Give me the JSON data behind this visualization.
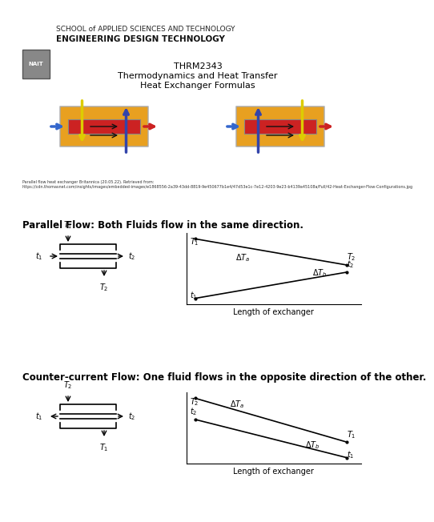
{
  "title_line1": "THRM2343",
  "title_line2": "Thermodynamics and Heat Transfer",
  "title_line3": "Heat Exchanger Formulas",
  "header_line1": "SCHOOL of APPLIED SCIENCES AND TECHNOLOGY",
  "header_line2": "ENGINEERING DESIGN TECHNOLOGY",
  "parallel_label": "Parallel Flow: Both Fluids flow in the same direction.",
  "counter_label": "Counter-current Flow: One fluid flows in the opposite direction of the other.",
  "xlabel": "Length of exchanger",
  "bg_color": "#ffffff",
  "text_color": "#000000",
  "citation_text": "Parallel flow heat exchanger Britannica (20.05.22). Retrieved from: https://cdn.thomasnet.com/insights/images/embedded-images/e1868556-2a39-43dd-8819-9e450677b1e4/47d53e1c-7e12-4203-9e23-b4139a45108a/Full/42-Heat-Exchanger-Flow-Configurations.jpg"
}
